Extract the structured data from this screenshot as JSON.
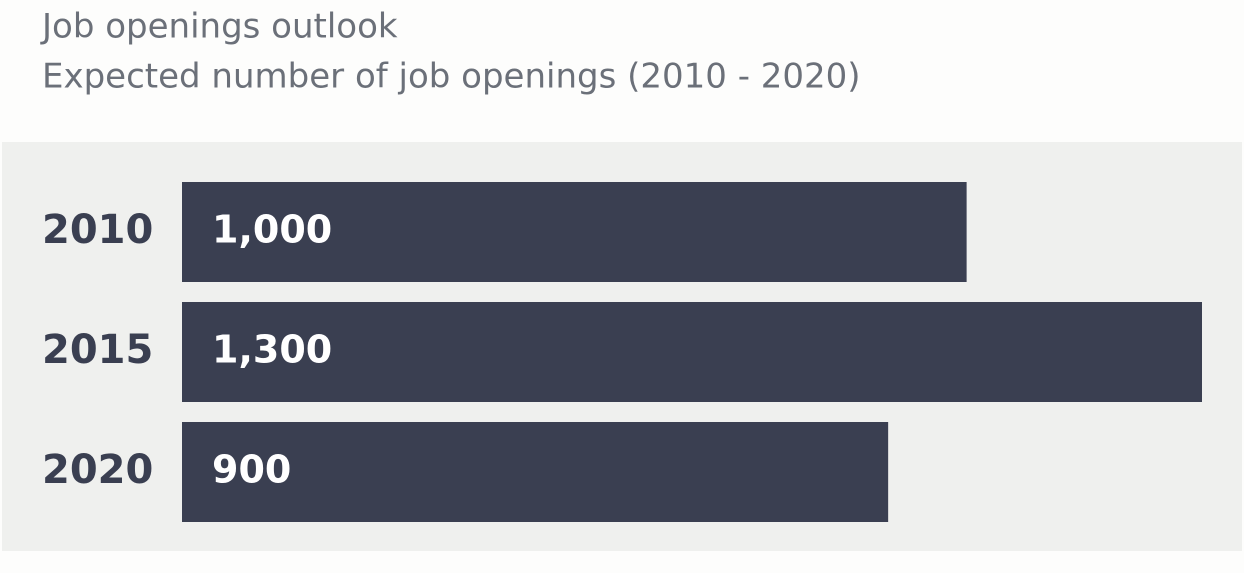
{
  "chart_data": {
    "type": "bar",
    "orientation": "horizontal",
    "title": "Job openings outlook",
    "subtitle": "Expected number of job openings (2010 - 2020)",
    "categories": [
      "2010",
      "2015",
      "2020"
    ],
    "values": [
      1000,
      1300,
      900
    ],
    "value_labels": [
      "1,000",
      "1,300",
      "900"
    ],
    "color": "#3a3f51"
  }
}
